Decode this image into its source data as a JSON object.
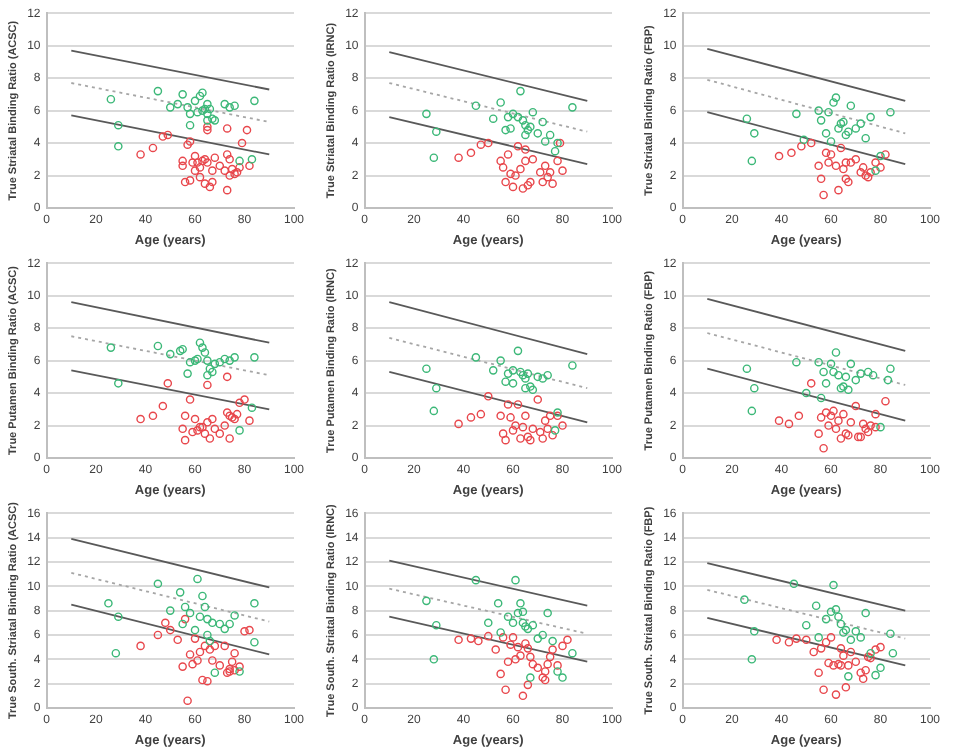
{
  "chart_data": [
    {
      "type": "scatter",
      "xlabel": "Age (years)",
      "ylabel": "True Striatal Binding Ratio (ACSC)",
      "xlim": [
        0,
        100
      ],
      "xticks": [
        0,
        20,
        40,
        60,
        80,
        100
      ],
      "ylim": [
        0,
        12
      ],
      "yticks": [
        0,
        2,
        4,
        6,
        8,
        10,
        12
      ],
      "grid": "y",
      "marker": "circle",
      "series": [
        {
          "color": "#3cb878",
          "x": [
            26,
            29,
            29,
            45,
            50,
            53,
            55,
            57,
            58,
            60,
            61,
            62,
            63,
            63,
            64,
            65,
            65,
            66,
            67,
            68,
            72,
            74,
            76,
            78,
            84,
            83,
            65,
            58
          ],
          "values": [
            6.7,
            5.1,
            3.8,
            7.2,
            6.2,
            6.4,
            7.0,
            6.2,
            5.1,
            6.6,
            5.9,
            6.9,
            7.1,
            6.0,
            6.1,
            5.4,
            5.8,
            6.1,
            5.5,
            5.4,
            6.4,
            6.2,
            6.3,
            2.9,
            6.6,
            3.0,
            6.4,
            5.8
          ]
        },
        {
          "color": "#e8474c",
          "x": [
            38,
            43,
            47,
            49,
            55,
            55,
            56,
            57,
            58,
            58,
            59,
            60,
            60,
            61,
            62,
            62,
            63,
            64,
            64,
            65,
            65,
            66,
            67,
            67,
            68,
            70,
            72,
            73,
            73,
            73,
            74,
            75,
            76,
            77,
            78,
            79,
            81,
            82,
            65,
            74
          ],
          "values": [
            3.3,
            3.7,
            4.4,
            4.5,
            2.9,
            2.6,
            1.6,
            3.9,
            4.1,
            1.7,
            2.8,
            2.3,
            3.2,
            2.8,
            2.5,
            1.9,
            2.9,
            1.5,
            3.0,
            2.8,
            4.8,
            1.3,
            2.3,
            1.6,
            3.1,
            2.6,
            2.3,
            3.3,
            4.9,
            1.1,
            2.0,
            2.4,
            2.1,
            2.2,
            2.5,
            4.0,
            4.8,
            2.6,
            5.0,
            3.0
          ]
        },
        {
          "type": "line",
          "marker": "none",
          "line_style": "solid",
          "color": "#595959",
          "x": [
            10,
            90
          ],
          "values": [
            9.7,
            7.3
          ]
        },
        {
          "type": "line",
          "marker": "none",
          "line_style": "dotted",
          "color": "#a6a6a6",
          "x": [
            10,
            90
          ],
          "values": [
            7.7,
            5.3
          ]
        },
        {
          "type": "line",
          "marker": "none",
          "line_style": "solid",
          "color": "#595959",
          "x": [
            10,
            90
          ],
          "values": [
            5.7,
            3.3
          ]
        }
      ]
    },
    {
      "type": "scatter",
      "xlabel": "Age (years)",
      "ylabel": "True Striatal Binding Ratio (IRNC)",
      "xlim": [
        0,
        100
      ],
      "xticks": [
        0,
        20,
        40,
        60,
        80,
        100
      ],
      "ylim": [
        0,
        12
      ],
      "yticks": [
        0,
        2,
        4,
        6,
        8,
        10,
        12
      ],
      "grid": "y",
      "marker": "circle",
      "series": [
        {
          "color": "#3cb878",
          "x": [
            25,
            29,
            28,
            45,
            52,
            55,
            57,
            58,
            59,
            60,
            62,
            63,
            64,
            65,
            65,
            66,
            67,
            70,
            72,
            73,
            75,
            77,
            78,
            84,
            68
          ],
          "values": [
            5.8,
            4.7,
            3.1,
            6.3,
            5.5,
            6.5,
            4.8,
            5.6,
            4.9,
            5.8,
            5.6,
            7.2,
            5.4,
            5.1,
            4.5,
            4.8,
            5.0,
            4.6,
            5.3,
            4.1,
            4.5,
            3.5,
            4.0,
            6.2,
            5.9
          ]
        },
        {
          "color": "#e8474c",
          "x": [
            38,
            43,
            47,
            50,
            55,
            56,
            57,
            58,
            59,
            60,
            61,
            62,
            63,
            64,
            65,
            66,
            67,
            68,
            71,
            72,
            73,
            74,
            75,
            76,
            78,
            80,
            65,
            79
          ],
          "values": [
            3.1,
            3.4,
            3.9,
            4.0,
            2.9,
            2.5,
            1.6,
            3.3,
            2.1,
            1.3,
            2.0,
            3.8,
            2.4,
            1.2,
            2.9,
            1.4,
            1.6,
            3.0,
            2.2,
            1.6,
            2.6,
            1.9,
            2.2,
            1.5,
            2.9,
            2.3,
            3.6,
            4.0
          ]
        },
        {
          "type": "line",
          "marker": "none",
          "line_style": "solid",
          "color": "#595959",
          "x": [
            10,
            90
          ],
          "values": [
            9.6,
            6.6
          ]
        },
        {
          "type": "line",
          "marker": "none",
          "line_style": "dotted",
          "color": "#a6a6a6",
          "x": [
            10,
            90
          ],
          "values": [
            7.7,
            4.7
          ]
        },
        {
          "type": "line",
          "marker": "none",
          "line_style": "solid",
          "color": "#595959",
          "x": [
            10,
            90
          ],
          "values": [
            5.6,
            2.7
          ]
        }
      ]
    },
    {
      "type": "scatter",
      "xlabel": "Age (years)",
      "ylabel": "True Striatal Binding Ratio (FBP)",
      "xlim": [
        0,
        100
      ],
      "xticks": [
        0,
        20,
        40,
        60,
        80,
        100
      ],
      "ylim": [
        0,
        12
      ],
      "yticks": [
        0,
        2,
        4,
        6,
        8,
        10,
        12
      ],
      "grid": "y",
      "marker": "circle",
      "series": [
        {
          "color": "#3cb878",
          "x": [
            26,
            28,
            29,
            46,
            49,
            55,
            56,
            58,
            59,
            61,
            62,
            63,
            64,
            65,
            66,
            67,
            68,
            70,
            72,
            74,
            76,
            78,
            80,
            84,
            60
          ],
          "values": [
            5.5,
            2.9,
            4.6,
            5.8,
            4.2,
            6.0,
            5.4,
            4.6,
            5.9,
            6.5,
            6.8,
            4.9,
            5.2,
            5.3,
            4.5,
            4.7,
            6.3,
            4.9,
            5.2,
            4.3,
            5.6,
            2.3,
            3.2,
            5.9,
            4.1
          ]
        },
        {
          "color": "#e8474c",
          "x": [
            39,
            44,
            48,
            52,
            55,
            56,
            57,
            58,
            59,
            60,
            62,
            63,
            64,
            65,
            66,
            67,
            68,
            70,
            72,
            73,
            74,
            75,
            76,
            78,
            80,
            82,
            66
          ],
          "values": [
            3.2,
            3.4,
            3.8,
            4.0,
            2.6,
            1.8,
            0.8,
            3.4,
            2.8,
            3.3,
            2.6,
            1.1,
            3.7,
            2.4,
            1.8,
            1.6,
            2.8,
            3.0,
            2.2,
            2.5,
            2.0,
            1.9,
            2.2,
            2.8,
            2.5,
            3.3,
            2.8
          ]
        },
        {
          "type": "line",
          "marker": "none",
          "line_style": "solid",
          "color": "#595959",
          "x": [
            10,
            90
          ],
          "values": [
            9.8,
            6.6
          ]
        },
        {
          "type": "line",
          "marker": "none",
          "line_style": "dotted",
          "color": "#a6a6a6",
          "x": [
            10,
            90
          ],
          "values": [
            7.9,
            4.6
          ]
        },
        {
          "type": "line",
          "marker": "none",
          "line_style": "solid",
          "color": "#595959",
          "x": [
            10,
            90
          ],
          "values": [
            5.9,
            2.7
          ]
        }
      ]
    },
    {
      "type": "scatter",
      "xlabel": "Age (years)",
      "ylabel": "True Putamen Binding Ratio (ACSC)",
      "xlim": [
        0,
        100
      ],
      "xticks": [
        0,
        20,
        40,
        60,
        80,
        100
      ],
      "ylim": [
        0,
        12
      ],
      "yticks": [
        0,
        2,
        4,
        6,
        8,
        10,
        12
      ],
      "grid": "y",
      "marker": "circle",
      "series": [
        {
          "color": "#3cb878",
          "x": [
            26,
            29,
            45,
            50,
            54,
            55,
            57,
            58,
            60,
            61,
            62,
            63,
            64,
            65,
            65,
            66,
            67,
            68,
            72,
            74,
            76,
            78,
            84,
            83,
            70
          ],
          "values": [
            6.8,
            4.6,
            6.9,
            6.4,
            6.6,
            6.7,
            5.2,
            5.9,
            6.0,
            6.1,
            7.1,
            6.8,
            6.5,
            6.0,
            5.1,
            5.5,
            5.3,
            5.8,
            6.1,
            6.0,
            6.2,
            1.7,
            6.2,
            3.1,
            5.9
          ]
        },
        {
          "color": "#e8474c",
          "x": [
            38,
            43,
            47,
            49,
            55,
            56,
            56,
            58,
            59,
            60,
            61,
            62,
            63,
            64,
            65,
            65,
            66,
            67,
            68,
            70,
            72,
            73,
            73,
            74,
            75,
            76,
            77,
            78,
            80,
            82,
            74
          ],
          "values": [
            2.4,
            2.6,
            3.2,
            4.6,
            1.8,
            2.6,
            1.1,
            3.6,
            1.6,
            2.4,
            1.7,
            1.9,
            1.9,
            1.5,
            2.2,
            4.5,
            1.2,
            2.4,
            1.8,
            1.5,
            2.0,
            2.8,
            5.0,
            1.2,
            2.5,
            2.4,
            2.7,
            3.4,
            3.6,
            2.3,
            2.6
          ]
        },
        {
          "type": "line",
          "marker": "none",
          "line_style": "solid",
          "color": "#595959",
          "x": [
            10,
            90
          ],
          "values": [
            9.6,
            7.1
          ]
        },
        {
          "type": "line",
          "marker": "none",
          "line_style": "dotted",
          "color": "#a6a6a6",
          "x": [
            10,
            90
          ],
          "values": [
            7.5,
            5.1
          ]
        },
        {
          "type": "line",
          "marker": "none",
          "line_style": "solid",
          "color": "#595959",
          "x": [
            10,
            90
          ],
          "values": [
            5.4,
            3.0
          ]
        }
      ]
    },
    {
      "type": "scatter",
      "xlabel": "Age (years)",
      "ylabel": "True Putamen Binding Ratio (IRNC)",
      "xlim": [
        0,
        100
      ],
      "xticks": [
        0,
        20,
        40,
        60,
        80,
        100
      ],
      "ylim": [
        0,
        12
      ],
      "yticks": [
        0,
        2,
        4,
        6,
        8,
        10,
        12
      ],
      "grid": "y",
      "marker": "circle",
      "series": [
        {
          "color": "#3cb878",
          "x": [
            25,
            28,
            29,
            45,
            52,
            55,
            57,
            58,
            60,
            62,
            63,
            64,
            65,
            65,
            66,
            67,
            68,
            70,
            72,
            74,
            77,
            78,
            84,
            60
          ],
          "values": [
            5.5,
            2.9,
            4.3,
            6.2,
            5.4,
            6.0,
            4.7,
            5.2,
            5.4,
            6.6,
            5.3,
            5.1,
            4.9,
            4.3,
            5.2,
            4.4,
            4.2,
            5.0,
            4.9,
            5.1,
            1.7,
            2.8,
            5.7,
            4.6
          ]
        },
        {
          "color": "#e8474c",
          "x": [
            38,
            43,
            47,
            50,
            55,
            56,
            57,
            58,
            59,
            60,
            61,
            62,
            63,
            64,
            65,
            66,
            67,
            68,
            71,
            72,
            73,
            74,
            75,
            76,
            78,
            80,
            70
          ],
          "values": [
            2.1,
            2.5,
            2.7,
            3.8,
            2.6,
            1.5,
            1.1,
            3.3,
            2.5,
            1.7,
            2.0,
            3.3,
            1.2,
            1.9,
            2.6,
            1.3,
            1.1,
            1.8,
            1.6,
            1.2,
            2.3,
            1.8,
            2.6,
            1.4,
            2.6,
            2.0,
            3.6
          ]
        },
        {
          "type": "line",
          "marker": "none",
          "line_style": "solid",
          "color": "#595959",
          "x": [
            10,
            90
          ],
          "values": [
            9.6,
            6.4
          ]
        },
        {
          "type": "line",
          "marker": "none",
          "line_style": "dotted",
          "color": "#a6a6a6",
          "x": [
            10,
            90
          ],
          "values": [
            7.4,
            4.3
          ]
        },
        {
          "type": "line",
          "marker": "none",
          "line_style": "solid",
          "color": "#595959",
          "x": [
            10,
            90
          ],
          "values": [
            5.3,
            2.2
          ]
        }
      ]
    },
    {
      "type": "scatter",
      "xlabel": "Age (years)",
      "ylabel": "True Putamen Binding Ratio (FBP)",
      "xlim": [
        0,
        100
      ],
      "xticks": [
        0,
        20,
        40,
        60,
        80,
        100
      ],
      "ylim": [
        0,
        12
      ],
      "yticks": [
        0,
        2,
        4,
        6,
        8,
        10,
        12
      ],
      "grid": "y",
      "marker": "circle",
      "series": [
        {
          "color": "#3cb878",
          "x": [
            26,
            28,
            29,
            46,
            50,
            55,
            57,
            58,
            60,
            61,
            62,
            63,
            64,
            65,
            66,
            67,
            68,
            70,
            72,
            75,
            77,
            80,
            84,
            83,
            56
          ],
          "values": [
            5.5,
            2.9,
            4.3,
            5.9,
            4.0,
            5.9,
            5.3,
            4.6,
            5.8,
            5.3,
            6.5,
            5.1,
            4.3,
            4.4,
            5.0,
            4.2,
            5.8,
            4.8,
            5.2,
            5.3,
            5.1,
            1.9,
            5.5,
            4.8,
            3.7
          ]
        },
        {
          "color": "#e8474c",
          "x": [
            39,
            43,
            47,
            52,
            55,
            56,
            57,
            58,
            59,
            60,
            61,
            62,
            63,
            64,
            65,
            66,
            67,
            68,
            70,
            72,
            73,
            74,
            75,
            76,
            78,
            78,
            82,
            71
          ],
          "values": [
            2.3,
            2.1,
            2.6,
            4.6,
            1.5,
            2.5,
            0.6,
            2.8,
            2.0,
            2.6,
            2.9,
            1.8,
            2.3,
            1.2,
            2.7,
            1.5,
            1.4,
            2.2,
            3.2,
            1.3,
            2.1,
            1.8,
            1.6,
            2.0,
            2.7,
            1.9,
            3.5,
            1.3
          ]
        },
        {
          "type": "line",
          "marker": "none",
          "line_style": "solid",
          "color": "#595959",
          "x": [
            10,
            90
          ],
          "values": [
            9.8,
            6.6
          ]
        },
        {
          "type": "line",
          "marker": "none",
          "line_style": "dotted",
          "color": "#a6a6a6",
          "x": [
            10,
            90
          ],
          "values": [
            7.7,
            4.5
          ]
        },
        {
          "type": "line",
          "marker": "none",
          "line_style": "solid",
          "color": "#595959",
          "x": [
            10,
            90
          ],
          "values": [
            5.5,
            2.3
          ]
        }
      ]
    },
    {
      "type": "scatter",
      "xlabel": "Age (years)",
      "ylabel": "True South. Striatal Binding Ratio (ACSC)",
      "xlim": [
        0,
        100
      ],
      "xticks": [
        0,
        20,
        40,
        60,
        80,
        100
      ],
      "ylim": [
        0,
        16
      ],
      "yticks": [
        0,
        2,
        4,
        6,
        8,
        10,
        12,
        14,
        16
      ],
      "grid": "y",
      "marker": "circle",
      "series": [
        {
          "color": "#3cb878",
          "x": [
            25,
            28,
            29,
            45,
            50,
            54,
            55,
            56,
            58,
            60,
            61,
            62,
            63,
            64,
            65,
            65,
            66,
            67,
            68,
            70,
            72,
            74,
            76,
            78,
            84,
            84
          ],
          "values": [
            8.6,
            4.5,
            7.5,
            10.2,
            8.0,
            9.5,
            6.9,
            8.3,
            7.8,
            6.4,
            10.6,
            7.5,
            9.2,
            8.3,
            6.0,
            7.3,
            5.5,
            7.0,
            2.9,
            6.9,
            6.5,
            6.9,
            7.6,
            3.0,
            8.6,
            5.4
          ]
        },
        {
          "color": "#e8474c",
          "x": [
            38,
            45,
            48,
            50,
            53,
            55,
            56,
            57,
            58,
            59,
            60,
            61,
            62,
            63,
            64,
            65,
            66,
            67,
            68,
            70,
            72,
            73,
            74,
            75,
            76,
            78,
            80,
            82,
            74,
            76
          ],
          "values": [
            5.1,
            6.0,
            7.0,
            6.4,
            5.6,
            3.4,
            7.3,
            0.6,
            4.4,
            3.6,
            5.7,
            3.9,
            4.6,
            2.3,
            5.1,
            2.2,
            4.8,
            3.9,
            5.1,
            3.5,
            5.1,
            2.9,
            3.2,
            3.8,
            4.5,
            3.4,
            6.3,
            6.4,
            3.0,
            3.1
          ]
        },
        {
          "type": "line",
          "marker": "none",
          "line_style": "solid",
          "color": "#595959",
          "x": [
            10,
            90
          ],
          "values": [
            13.9,
            9.9
          ]
        },
        {
          "type": "line",
          "marker": "none",
          "line_style": "dotted",
          "color": "#a6a6a6",
          "x": [
            10,
            90
          ],
          "values": [
            11.1,
            7.1
          ]
        },
        {
          "type": "line",
          "marker": "none",
          "line_style": "solid",
          "color": "#595959",
          "x": [
            10,
            90
          ],
          "values": [
            8.5,
            4.4
          ]
        }
      ]
    },
    {
      "type": "scatter",
      "xlabel": "Age (years)",
      "ylabel": "True South. Striatal Binding Ratio (IRNC)",
      "xlim": [
        0,
        100
      ],
      "xticks": [
        0,
        20,
        40,
        60,
        80,
        100
      ],
      "ylim": [
        0,
        16
      ],
      "yticks": [
        0,
        2,
        4,
        6,
        8,
        10,
        12,
        14,
        16
      ],
      "grid": "y",
      "marker": "circle",
      "series": [
        {
          "color": "#3cb878",
          "x": [
            25,
            28,
            29,
            45,
            50,
            54,
            55,
            58,
            60,
            61,
            62,
            63,
            64,
            65,
            66,
            67,
            68,
            70,
            72,
            74,
            76,
            78,
            80,
            84,
            64
          ],
          "values": [
            8.8,
            4.0,
            6.8,
            10.5,
            7.0,
            8.6,
            6.2,
            7.5,
            7.0,
            10.5,
            7.8,
            8.6,
            7.0,
            6.7,
            6.5,
            2.5,
            6.8,
            5.7,
            6.0,
            7.8,
            5.5,
            3.0,
            2.5,
            4.5,
            7.9
          ]
        },
        {
          "color": "#e8474c",
          "x": [
            38,
            43,
            46,
            50,
            53,
            55,
            56,
            57,
            58,
            59,
            60,
            61,
            62,
            63,
            64,
            65,
            66,
            67,
            68,
            70,
            72,
            73,
            74,
            75,
            76,
            78,
            80,
            82,
            73,
            66
          ],
          "values": [
            5.6,
            5.7,
            5.5,
            5.9,
            4.8,
            2.8,
            5.8,
            1.5,
            3.8,
            5.2,
            5.8,
            4.0,
            5.0,
            4.3,
            1.0,
            5.3,
            1.9,
            4.2,
            3.6,
            3.3,
            2.5,
            3.0,
            3.6,
            4.2,
            4.8,
            3.5,
            5.1,
            5.6,
            2.3,
            4.9
          ]
        },
        {
          "type": "line",
          "marker": "none",
          "line_style": "solid",
          "color": "#595959",
          "x": [
            10,
            90
          ],
          "values": [
            12.1,
            8.4
          ]
        },
        {
          "type": "line",
          "marker": "none",
          "line_style": "dotted",
          "color": "#a6a6a6",
          "x": [
            10,
            90
          ],
          "values": [
            9.8,
            6.1
          ]
        },
        {
          "type": "line",
          "marker": "none",
          "line_style": "solid",
          "color": "#595959",
          "x": [
            10,
            90
          ],
          "values": [
            7.5,
            3.8
          ]
        }
      ]
    },
    {
      "type": "scatter",
      "xlabel": "Age (years)",
      "ylabel": "True South. Striatal Binding Ratio (FBP)",
      "xlim": [
        0,
        100
      ],
      "xticks": [
        0,
        20,
        40,
        60,
        80,
        100
      ],
      "ylim": [
        0,
        16
      ],
      "yticks": [
        0,
        2,
        4,
        6,
        8,
        10,
        12,
        14,
        16
      ],
      "grid": "y",
      "marker": "circle",
      "series": [
        {
          "color": "#3cb878",
          "x": [
            25,
            28,
            29,
            45,
            50,
            54,
            55,
            58,
            60,
            61,
            62,
            63,
            64,
            65,
            66,
            67,
            68,
            70,
            72,
            74,
            76,
            78,
            80,
            84,
            85
          ],
          "values": [
            8.9,
            4.0,
            6.3,
            10.2,
            6.8,
            8.4,
            5.8,
            7.3,
            7.9,
            10.1,
            8.1,
            7.5,
            6.9,
            6.2,
            6.4,
            2.6,
            5.6,
            6.3,
            5.8,
            7.8,
            4.5,
            2.7,
            3.3,
            6.1,
            4.5
          ]
        },
        {
          "color": "#e8474c",
          "x": [
            38,
            43,
            46,
            50,
            53,
            55,
            56,
            57,
            58,
            59,
            60,
            61,
            62,
            63,
            64,
            65,
            66,
            67,
            68,
            70,
            72,
            73,
            74,
            75,
            76,
            78,
            80,
            64
          ],
          "values": [
            5.6,
            5.4,
            5.7,
            5.6,
            4.6,
            2.9,
            4.9,
            1.5,
            5.4,
            3.7,
            5.8,
            3.5,
            1.1,
            3.6,
            3.5,
            4.3,
            1.7,
            3.5,
            4.6,
            3.8,
            2.9,
            2.4,
            3.1,
            4.2,
            4.1,
            4.8,
            5.0,
            4.9
          ]
        },
        {
          "type": "line",
          "marker": "none",
          "line_style": "solid",
          "color": "#595959",
          "x": [
            10,
            90
          ],
          "values": [
            11.9,
            8.0
          ]
        },
        {
          "type": "line",
          "marker": "none",
          "line_style": "dotted",
          "color": "#a6a6a6",
          "x": [
            10,
            90
          ],
          "values": [
            9.7,
            5.7
          ]
        },
        {
          "type": "line",
          "marker": "none",
          "line_style": "solid",
          "color": "#595959",
          "x": [
            10,
            90
          ],
          "values": [
            7.4,
            3.5
          ]
        }
      ]
    }
  ]
}
